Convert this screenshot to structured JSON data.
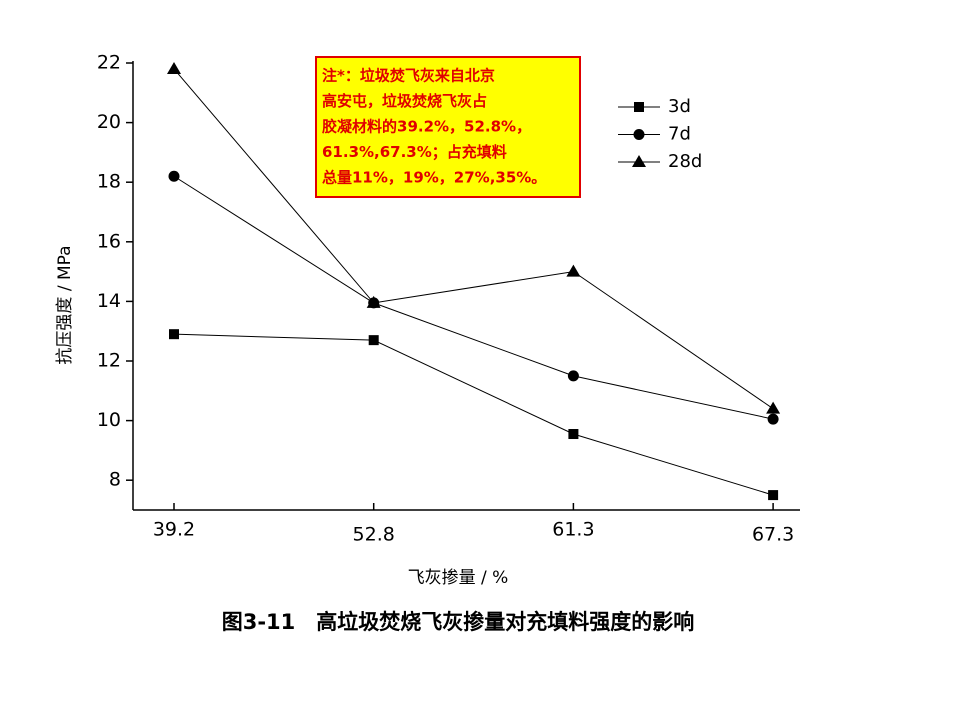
{
  "chart_data": {
    "type": "line",
    "x_label": "飞灰掺量 / %",
    "y_label": "抗压强度 / MPa",
    "caption": "图3-11　高垃圾焚烧飞灰掺量对充填料强度的影响",
    "annotation": [
      "注*：垃圾焚飞灰来自北京",
      "高安屯，垃圾焚烧飞灰占",
      "胶凝材料的39.2%，52.8%，",
      "61.3%,67.3%；占充填料",
      "总量11%，19%，27%,35%。"
    ],
    "categories": [
      "39.2",
      "52.8",
      "61.3",
      "67.3"
    ],
    "series": [
      {
        "name": "3d",
        "color": "#000000",
        "marker": "square",
        "values": [
          12.9,
          12.7,
          9.55,
          7.5
        ]
      },
      {
        "name": "7d",
        "color": "#000000",
        "marker": "circle",
        "values": [
          18.2,
          13.95,
          11.5,
          10.05
        ]
      },
      {
        "name": "28d",
        "color": "#000000",
        "marker": "triangle",
        "values": [
          21.8,
          13.95,
          15.0,
          10.4
        ]
      }
    ],
    "ylim": [
      7,
      22
    ],
    "yticks": [
      8,
      10,
      12,
      14,
      16,
      18,
      20,
      22
    ],
    "grid": false
  }
}
